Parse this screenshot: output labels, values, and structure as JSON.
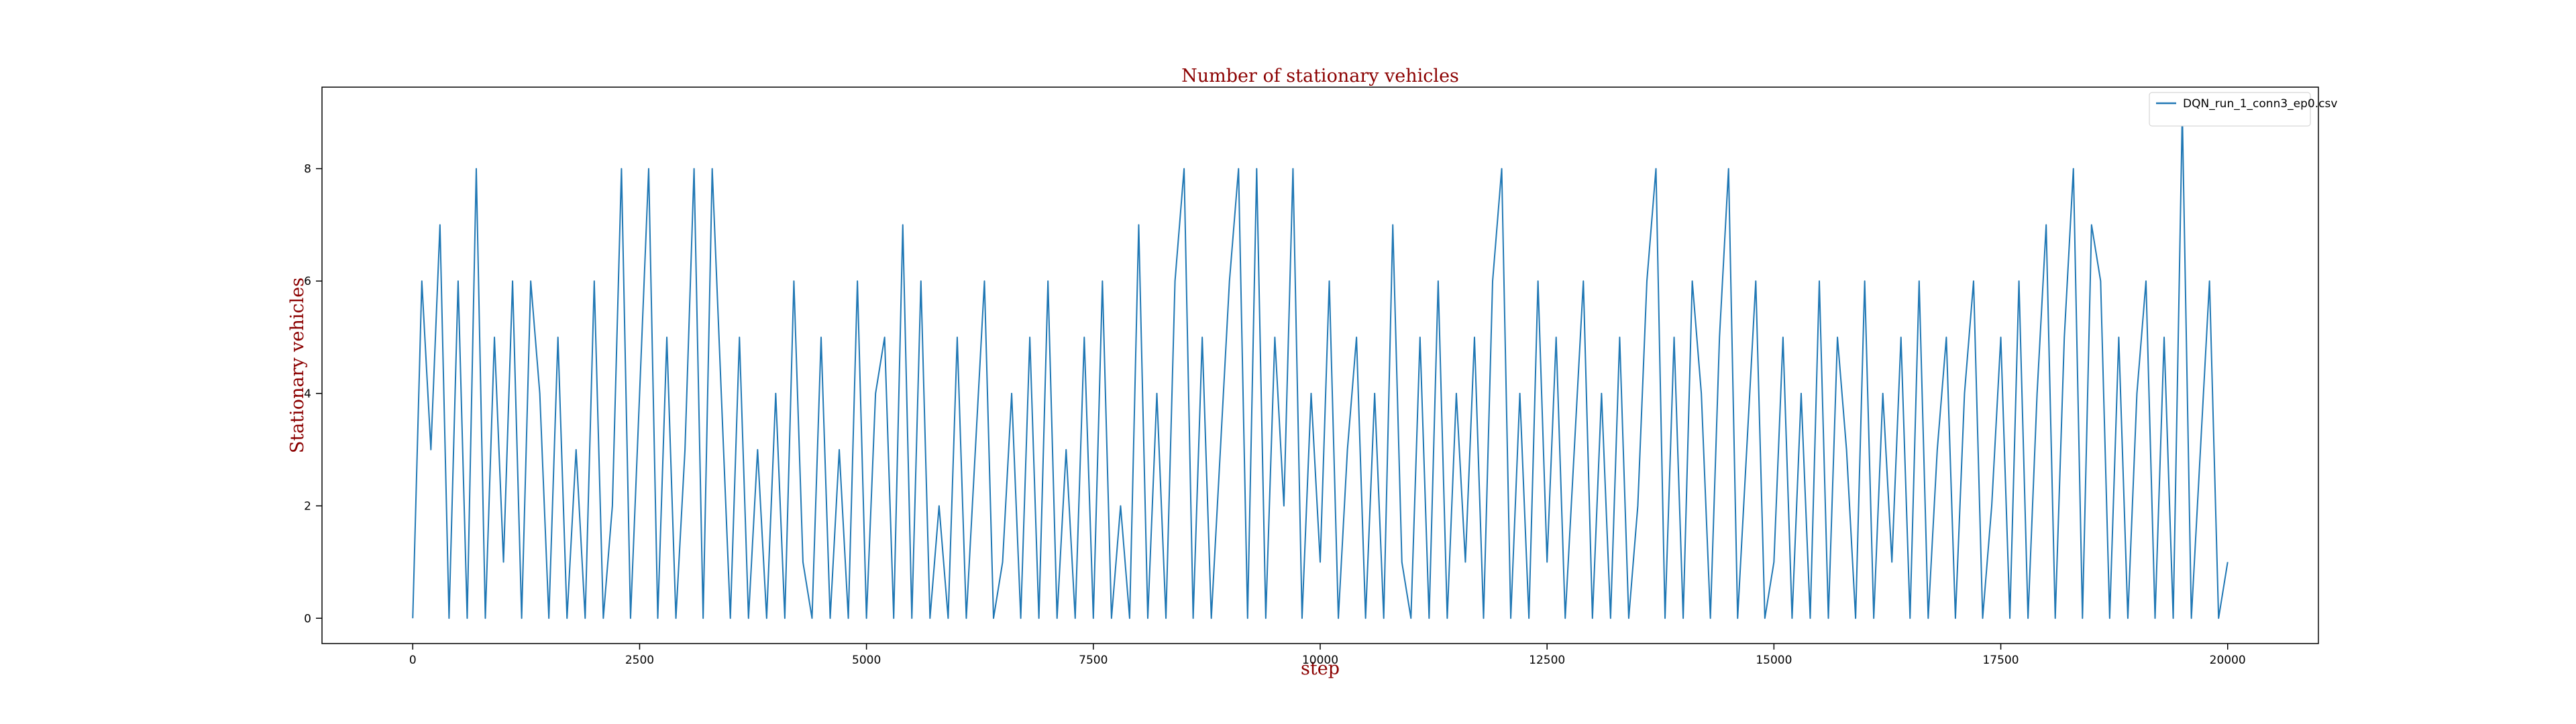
{
  "chart_data": {
    "type": "line",
    "title": "Number of stationary vehicles",
    "x_label": "step",
    "y_label": "Stationary vehicles",
    "x": [
      0,
      100,
      200,
      300,
      400,
      500,
      600,
      700,
      800,
      900,
      1000,
      1100,
      1200,
      1300,
      1400,
      1500,
      1600,
      1700,
      1800,
      1900,
      2000,
      2100,
      2200,
      2300,
      2400,
      2500,
      2600,
      2700,
      2800,
      2900,
      3000,
      3100,
      3200,
      3300,
      3400,
      3500,
      3600,
      3700,
      3800,
      3900,
      4000,
      4100,
      4200,
      4300,
      4400,
      4500,
      4600,
      4700,
      4800,
      4900,
      5000,
      5100,
      5200,
      5300,
      5400,
      5500,
      5600,
      5700,
      5800,
      5900,
      6000,
      6100,
      6200,
      6300,
      6400,
      6500,
      6600,
      6700,
      6800,
      6900,
      7000,
      7100,
      7200,
      7300,
      7400,
      7500,
      7600,
      7700,
      7800,
      7900,
      8000,
      8100,
      8200,
      8300,
      8400,
      8500,
      8600,
      8700,
      8800,
      8900,
      9000,
      9100,
      9200,
      9300,
      9400,
      9500,
      9600,
      9700,
      9800,
      9900,
      10000,
      10100,
      10200,
      10300,
      10400,
      10500,
      10600,
      10700,
      10800,
      10900,
      11000,
      11100,
      11200,
      11300,
      11400,
      11500,
      11600,
      11700,
      11800,
      11900,
      12000,
      12100,
      12200,
      12300,
      12400,
      12500,
      12600,
      12700,
      12800,
      12900,
      13000,
      13100,
      13200,
      13300,
      13400,
      13500,
      13600,
      13700,
      13800,
      13900,
      14000,
      14100,
      14200,
      14300,
      14400,
      14500,
      14600,
      14700,
      14800,
      14900,
      15000,
      15100,
      15200,
      15300,
      15400,
      15500,
      15600,
      15700,
      15800,
      15900,
      16000,
      16100,
      16200,
      16300,
      16400,
      16500,
      16600,
      16700,
      16800,
      16900,
      17000,
      17100,
      17200,
      17300,
      17400,
      17500,
      17600,
      17700,
      17800,
      17900,
      18000,
      18100,
      18200,
      18300,
      18400,
      18500,
      18600,
      18700,
      18800,
      18900,
      19000,
      19100,
      19200,
      19300,
      19400,
      19500,
      19600,
      19700,
      19800,
      19900,
      20000
    ],
    "series": [
      {
        "name": "DQN_run_1_conn3_ep0.csv",
        "color": "#1f77b4",
        "values": [
          0,
          6,
          3,
          7,
          0,
          6,
          0,
          8,
          0,
          5,
          1,
          6,
          0,
          6,
          4,
          0,
          5,
          0,
          3,
          0,
          6,
          0,
          2,
          8,
          0,
          4,
          8,
          0,
          5,
          0,
          3,
          8,
          0,
          8,
          4,
          0,
          5,
          0,
          3,
          0,
          4,
          0,
          6,
          1,
          0,
          5,
          0,
          3,
          0,
          6,
          0,
          4,
          5,
          0,
          7,
          0,
          6,
          0,
          2,
          0,
          5,
          0,
          3,
          6,
          0,
          1,
          4,
          0,
          5,
          0,
          6,
          0,
          3,
          0,
          5,
          0,
          6,
          0,
          2,
          0,
          7,
          0,
          4,
          0,
          6,
          8,
          0,
          5,
          0,
          3,
          6,
          8,
          0,
          8,
          0,
          5,
          2,
          8,
          0,
          4,
          1,
          6,
          0,
          3,
          5,
          0,
          4,
          0,
          7,
          1,
          0,
          5,
          0,
          6,
          0,
          4,
          1,
          5,
          0,
          6,
          8,
          0,
          4,
          0,
          6,
          1,
          5,
          0,
          3,
          6,
          0,
          4,
          0,
          5,
          0,
          2,
          6,
          8,
          0,
          5,
          0,
          6,
          4,
          0,
          5,
          8,
          0,
          3,
          6,
          0,
          1,
          5,
          0,
          4,
          0,
          6,
          0,
          5,
          3,
          0,
          6,
          0,
          4,
          1,
          5,
          0,
          6,
          0,
          3,
          5,
          0,
          4,
          6,
          0,
          2,
          5,
          0,
          6,
          0,
          4,
          7,
          0,
          5,
          8,
          0,
          7,
          6,
          0,
          5,
          0,
          4,
          6,
          0,
          5,
          0,
          9,
          0,
          3,
          6,
          0,
          1
        ]
      }
    ],
    "xlim": [
      -1000,
      21000
    ],
    "ylim": [
      -0.45,
      9.45
    ],
    "xticks": [
      0,
      2500,
      5000,
      7500,
      10000,
      12500,
      15000,
      17500,
      20000
    ],
    "yticks": [
      0,
      2,
      4,
      6,
      8
    ],
    "grid": false,
    "legend": "upper right"
  }
}
